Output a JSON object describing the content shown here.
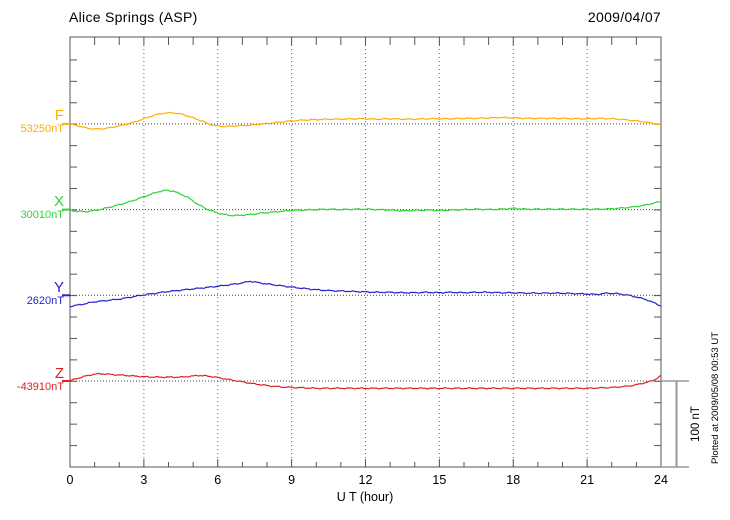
{
  "chart_data": {
    "type": "line",
    "station": "Alice Springs (ASP)",
    "date": "2009/04/07",
    "xlabel": "U T (hour)",
    "x_range": [
      0,
      24
    ],
    "x_ticks": [
      0,
      3,
      6,
      9,
      12,
      15,
      18,
      21,
      24
    ],
    "grid_hours": [
      3,
      6,
      9,
      12,
      15,
      18,
      21
    ],
    "minor_tick_every_hours": 1,
    "y_tick_every_nT": 25,
    "grid": true,
    "scale_bar": {
      "label": "100 nT",
      "nT": 100
    },
    "plotted_at": "Plotted at 2009/05/08 00:53 UT",
    "channels": [
      {
        "name": "F",
        "baseline_label": "53250nT",
        "baseline_nT": 53250,
        "color": "#FFAE00",
        "points": [
          [
            0,
            0
          ],
          [
            0.3,
            -2
          ],
          [
            0.7,
            -5
          ],
          [
            1,
            -6
          ],
          [
            1.4,
            -5.5
          ],
          [
            1.8,
            -3.5
          ],
          [
            2.2,
            -1
          ],
          [
            2.6,
            2
          ],
          [
            3,
            6
          ],
          [
            3.4,
            10
          ],
          [
            3.8,
            12.5
          ],
          [
            4.2,
            13
          ],
          [
            4.6,
            11
          ],
          [
            5,
            7
          ],
          [
            5.2,
            5
          ],
          [
            5.4,
            3
          ],
          [
            5.6,
            0
          ],
          [
            5.9,
            -2
          ],
          [
            6.2,
            -3
          ],
          [
            6.6,
            -2.5
          ],
          [
            7,
            -2
          ],
          [
            7.5,
            -1
          ],
          [
            8,
            0.5
          ],
          [
            8.5,
            2
          ],
          [
            9,
            3.5
          ],
          [
            9.5,
            4.5
          ],
          [
            10,
            5
          ],
          [
            10.5,
            5.5
          ],
          [
            11,
            5.5
          ],
          [
            11.5,
            6
          ],
          [
            12,
            6
          ],
          [
            12.5,
            5.5
          ],
          [
            13,
            6
          ],
          [
            13.5,
            5.5
          ],
          [
            14,
            5.5
          ],
          [
            14.5,
            6
          ],
          [
            15,
            6
          ],
          [
            15.5,
            6
          ],
          [
            16,
            6.5
          ],
          [
            16.5,
            6.5
          ],
          [
            17,
            7
          ],
          [
            17.5,
            7.5
          ],
          [
            18,
            7
          ],
          [
            18.5,
            6.5
          ],
          [
            19,
            6.5
          ],
          [
            19.5,
            6.5
          ],
          [
            20,
            6.5
          ],
          [
            20.5,
            6
          ],
          [
            21,
            6
          ],
          [
            21.5,
            6.5
          ],
          [
            22,
            6
          ],
          [
            22.5,
            5
          ],
          [
            23,
            3.5
          ],
          [
            23.4,
            2
          ],
          [
            23.7,
            0.5
          ],
          [
            24,
            -1
          ]
        ]
      },
      {
        "name": "X",
        "baseline_label": "30010nT",
        "baseline_nT": 30010,
        "color": "#2FD336",
        "points": [
          [
            0,
            -0.5
          ],
          [
            0.3,
            -2
          ],
          [
            0.6,
            -2.5
          ],
          [
            0.9,
            -1.5
          ],
          [
            1.2,
            0
          ],
          [
            1.5,
            2
          ],
          [
            1.9,
            5
          ],
          [
            2.3,
            8
          ],
          [
            2.7,
            12
          ],
          [
            3,
            15
          ],
          [
            3.3,
            18
          ],
          [
            3.6,
            21
          ],
          [
            3.9,
            22.5
          ],
          [
            4.2,
            21.5
          ],
          [
            4.5,
            18
          ],
          [
            4.8,
            14
          ],
          [
            5,
            10
          ],
          [
            5.2,
            6
          ],
          [
            5.4,
            3
          ],
          [
            5.6,
            0
          ],
          [
            5.8,
            -2
          ],
          [
            6,
            -4
          ],
          [
            6.3,
            -6
          ],
          [
            6.6,
            -7
          ],
          [
            7,
            -6.5
          ],
          [
            7.4,
            -5.5
          ],
          [
            7.8,
            -4
          ],
          [
            8.2,
            -3
          ],
          [
            8.6,
            -2
          ],
          [
            9,
            -1
          ],
          [
            9.5,
            -0.5
          ],
          [
            10,
            0
          ],
          [
            10.5,
            0.5
          ],
          [
            11,
            0
          ],
          [
            11.5,
            0.5
          ],
          [
            12,
            0.5
          ],
          [
            12.5,
            0
          ],
          [
            13,
            -0.5
          ],
          [
            13.5,
            -1.5
          ],
          [
            14,
            -1
          ],
          [
            14.5,
            -0.5
          ],
          [
            15,
            -1
          ],
          [
            15.5,
            -0.5
          ],
          [
            16,
            0
          ],
          [
            16.5,
            0.5
          ],
          [
            17,
            0
          ],
          [
            17.5,
            0.5
          ],
          [
            18,
            1.5
          ],
          [
            18.5,
            0.5
          ],
          [
            19,
            0.5
          ],
          [
            19.5,
            0.5
          ],
          [
            20,
            0.5
          ],
          [
            20.5,
            0.5
          ],
          [
            21,
            0.5
          ],
          [
            21.5,
            0.5
          ],
          [
            22,
            1
          ],
          [
            22.5,
            2
          ],
          [
            23,
            3.5
          ],
          [
            23.4,
            5.5
          ],
          [
            23.7,
            7.5
          ],
          [
            24,
            9.5
          ]
        ]
      },
      {
        "name": "Y",
        "baseline_label": "2620nT",
        "baseline_nT": 2620,
        "color": "#2424C8",
        "points": [
          [
            0,
            -13
          ],
          [
            0.3,
            -11.5
          ],
          [
            0.6,
            -10
          ],
          [
            0.9,
            -8
          ],
          [
            1.2,
            -7
          ],
          [
            1.5,
            -6
          ],
          [
            2,
            -4.5
          ],
          [
            2.5,
            -2
          ],
          [
            3,
            0.5
          ],
          [
            3.5,
            2.5
          ],
          [
            4,
            4.5
          ],
          [
            4.5,
            6
          ],
          [
            5,
            7.5
          ],
          [
            5.5,
            9
          ],
          [
            6,
            10.5
          ],
          [
            6.4,
            12
          ],
          [
            6.8,
            13.5
          ],
          [
            7.1,
            15
          ],
          [
            7.3,
            16.5
          ],
          [
            7.5,
            15.5
          ],
          [
            7.8,
            14
          ],
          [
            8.2,
            12.5
          ],
          [
            8.6,
            11
          ],
          [
            9,
            9.5
          ],
          [
            9.5,
            8
          ],
          [
            10,
            6.5
          ],
          [
            10.5,
            5.5
          ],
          [
            11,
            5
          ],
          [
            11.5,
            4.5
          ],
          [
            12,
            4
          ],
          [
            12.5,
            3.5
          ],
          [
            13,
            3.5
          ],
          [
            13.5,
            3
          ],
          [
            14,
            3
          ],
          [
            14.5,
            3.5
          ],
          [
            15,
            3
          ],
          [
            15.5,
            3.5
          ],
          [
            16,
            3
          ],
          [
            16.5,
            3.5
          ],
          [
            17,
            3.5
          ],
          [
            17.5,
            3
          ],
          [
            18,
            3
          ],
          [
            18.5,
            2.5
          ],
          [
            19,
            2.5
          ],
          [
            19.5,
            2.5
          ],
          [
            20,
            2.5
          ],
          [
            20.5,
            2
          ],
          [
            21,
            1.5
          ],
          [
            21.4,
            1
          ],
          [
            21.8,
            2.5
          ],
          [
            22.2,
            2
          ],
          [
            22.6,
            0.5
          ],
          [
            23,
            -2
          ],
          [
            23.4,
            -5
          ],
          [
            23.7,
            -8.5
          ],
          [
            24,
            -12.5
          ]
        ]
      },
      {
        "name": "Z",
        "baseline_label": "-43910nT",
        "baseline_nT": -43910,
        "color": "#DD2222",
        "points": [
          [
            0,
            0.5
          ],
          [
            0.3,
            3
          ],
          [
            0.6,
            5.5
          ],
          [
            0.9,
            7.5
          ],
          [
            1.2,
            8.5
          ],
          [
            1.5,
            8
          ],
          [
            2,
            7
          ],
          [
            2.5,
            6
          ],
          [
            3,
            5
          ],
          [
            3.5,
            4.5
          ],
          [
            4,
            4.5
          ],
          [
            4.5,
            4.5
          ],
          [
            4.9,
            5.5
          ],
          [
            5.2,
            6.5
          ],
          [
            5.5,
            6
          ],
          [
            5.8,
            5
          ],
          [
            6.1,
            3.5
          ],
          [
            6.4,
            2
          ],
          [
            6.7,
            0.5
          ],
          [
            7,
            -1
          ],
          [
            7.4,
            -3
          ],
          [
            7.8,
            -4.5
          ],
          [
            8.2,
            -6
          ],
          [
            8.6,
            -7
          ],
          [
            9,
            -7.5
          ],
          [
            9.5,
            -8
          ],
          [
            10,
            -8.5
          ],
          [
            11,
            -8.5
          ],
          [
            12,
            -8.5
          ],
          [
            13,
            -8.5
          ],
          [
            14,
            -8.5
          ],
          [
            15,
            -8.5
          ],
          [
            16,
            -8.5
          ],
          [
            17,
            -8.5
          ],
          [
            18,
            -8.5
          ],
          [
            19,
            -8.5
          ],
          [
            20,
            -8.5
          ],
          [
            21,
            -8.5
          ],
          [
            21.5,
            -8
          ],
          [
            22,
            -7.5
          ],
          [
            22.5,
            -6.5
          ],
          [
            22.9,
            -5
          ],
          [
            23.2,
            -3
          ],
          [
            23.5,
            -1
          ],
          [
            23.7,
            1
          ],
          [
            23.85,
            3.5
          ],
          [
            24,
            6
          ]
        ]
      }
    ]
  }
}
